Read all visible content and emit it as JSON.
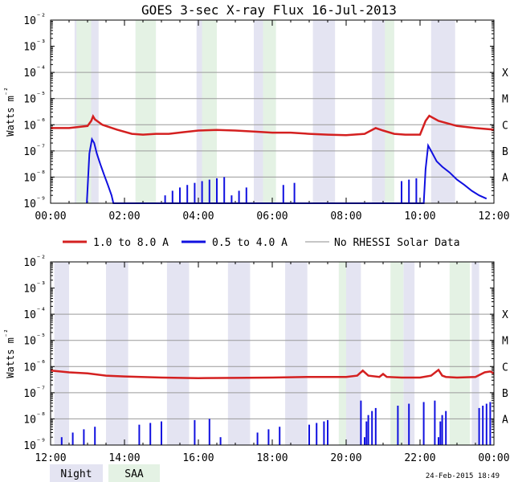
{
  "title": "GOES 3-sec X-ray Flux   16-Jul-2013",
  "footer_timestamp": "24-Feb-2015 18:49",
  "colors": {
    "long_channel": "#d42020",
    "short_channel": "#1010e0",
    "no_rhessi": "#8c8c8c",
    "night_band": "#e4e4f2",
    "saa_band": "#e4f2e4",
    "grid": "#9a9a9a"
  },
  "legend": {
    "long": "1.0 to 8.0 A",
    "short": "0.5 to 4.0 A",
    "no_data": "No RHESSI Solar Data",
    "night": "Night",
    "saa": "SAA"
  },
  "chart_data": [
    {
      "type": "line",
      "ylabel": "Watts m⁻²",
      "yscale": "log",
      "ylim": [
        1e-09,
        0.01
      ],
      "xlim_hours": [
        0,
        12
      ],
      "x_ticks": [
        "00:00",
        "02:00",
        "04:00",
        "06:00",
        "08:00",
        "10:00",
        "12:00"
      ],
      "y_ticks": [
        "10⁻⁹",
        "10⁻⁸",
        "10⁻⁷",
        "10⁻⁶",
        "10⁻⁵",
        "10⁻⁴",
        "10⁻³",
        "10⁻²"
      ],
      "flare_classes": [
        "A",
        "B",
        "C",
        "M",
        "X"
      ],
      "night_bands_hours": [
        [
          0.65,
          1.3
        ],
        [
          2.3,
          2.85
        ],
        [
          3.95,
          4.5
        ],
        [
          5.5,
          6.1
        ],
        [
          7.1,
          7.7
        ],
        [
          8.7,
          9.3
        ],
        [
          10.3,
          10.95
        ]
      ],
      "saa_bands_hours": [
        [
          0.7,
          1.1
        ],
        [
          2.3,
          2.85
        ],
        [
          4.1,
          4.5
        ],
        [
          5.75,
          6.1
        ],
        [
          9.05,
          9.3
        ]
      ],
      "series": [
        {
          "name": "1.0 to 8.0 A",
          "x_hours": [
            0,
            0.5,
            1.0,
            1.1,
            1.15,
            1.2,
            1.4,
            1.8,
            2.2,
            2.5,
            2.85,
            3.2,
            3.6,
            4.0,
            4.5,
            5.0,
            5.5,
            6.0,
            6.5,
            7.0,
            7.5,
            8.0,
            8.5,
            8.8,
            9.0,
            9.3,
            9.6,
            10.0,
            10.15,
            10.25,
            10.5,
            11.0,
            11.5,
            12.0
          ],
          "y": [
            7.5e-07,
            7.5e-07,
            9e-07,
            1.4e-06,
            2.1e-06,
            1.6e-06,
            1e-06,
            6.5e-07,
            4.5e-07,
            4.2e-07,
            4.5e-07,
            4.5e-07,
            5.2e-07,
            6e-07,
            6.3e-07,
            6e-07,
            5.5e-07,
            5e-07,
            5e-07,
            4.5e-07,
            4.2e-07,
            4e-07,
            4.5e-07,
            7.5e-07,
            6e-07,
            4.5e-07,
            4.2e-07,
            4.2e-07,
            1.4e-06,
            2.2e-06,
            1.4e-06,
            9e-07,
            7.5e-07,
            6.5e-07
          ]
        },
        {
          "name": "0.5 to 4.0 A",
          "x_hours": [
            0.98,
            1.05,
            1.12,
            1.18,
            1.25,
            1.35,
            1.45,
            1.55,
            1.65,
            1.7,
            10.1,
            10.15,
            10.22,
            10.3,
            10.45,
            10.6,
            10.8,
            11.0,
            11.2,
            11.4,
            11.6,
            11.8
          ],
          "y": [
            1e-09,
            8e-08,
            2.8e-07,
            2e-07,
            8e-08,
            3e-08,
            1.2e-08,
            5e-09,
            2e-09,
            1e-09,
            1e-09,
            2e-08,
            1.6e-07,
            1e-07,
            4e-08,
            2.5e-08,
            1.5e-08,
            8e-09,
            5e-09,
            3e-09,
            2e-09,
            1.5e-09
          ],
          "noise_hours": [
            3.1,
            3.3,
            3.5,
            3.7,
            3.9,
            4.1,
            4.3,
            4.5,
            4.7,
            4.9,
            5.1,
            5.3,
            6.3,
            6.6,
            9.5,
            9.7,
            9.9
          ]
        }
      ]
    },
    {
      "type": "line",
      "ylabel": "Watts m⁻²",
      "yscale": "log",
      "ylim": [
        1e-09,
        0.01
      ],
      "xlim_hours": [
        12,
        24
      ],
      "x_ticks": [
        "12:00",
        "14:00",
        "16:00",
        "18:00",
        "20:00",
        "22:00",
        "00:00"
      ],
      "y_ticks": [
        "10⁻⁹",
        "10⁻⁸",
        "10⁻⁷",
        "10⁻⁶",
        "10⁻⁵",
        "10⁻⁴",
        "10⁻³",
        "10⁻²"
      ],
      "flare_classes": [
        "A",
        "B",
        "C",
        "M",
        "X"
      ],
      "night_bands_hours": [
        [
          12.1,
          12.5
        ],
        [
          13.5,
          14.1
        ],
        [
          15.15,
          15.75
        ],
        [
          16.8,
          17.4
        ],
        [
          18.35,
          18.95
        ],
        [
          19.9,
          20.4
        ],
        [
          21.55,
          21.85
        ],
        [
          23.4,
          23.6
        ]
      ],
      "saa_bands_hours": [
        [
          19.8,
          20.0
        ],
        [
          21.2,
          21.55
        ],
        [
          22.8,
          23.35
        ]
      ],
      "series": [
        {
          "name": "1.0 to 8.0 A",
          "x_hours": [
            12,
            12.5,
            13,
            13.5,
            14,
            15,
            16,
            17,
            18,
            19,
            19.5,
            20,
            20.3,
            20.45,
            20.6,
            20.9,
            21.0,
            21.1,
            21.5,
            22,
            22.3,
            22.5,
            22.6,
            22.7,
            23,
            23.5,
            23.75,
            23.9,
            24
          ],
          "y": [
            7e-07,
            6e-07,
            5.5e-07,
            4.5e-07,
            4.2e-07,
            3.8e-07,
            3.6e-07,
            3.7e-07,
            3.8e-07,
            4e-07,
            4e-07,
            4e-07,
            4.5e-07,
            7e-07,
            4.5e-07,
            4e-07,
            5.2e-07,
            4e-07,
            3.8e-07,
            3.8e-07,
            4.5e-07,
            7.5e-07,
            4.5e-07,
            4e-07,
            3.8e-07,
            4e-07,
            6e-07,
            6.5e-07,
            5.5e-07
          ]
        },
        {
          "name": "0.5 to 4.0 A",
          "x_hours": [],
          "y": [],
          "noise_hours": [
            12.3,
            12.6,
            12.9,
            13.2,
            14.4,
            14.7,
            15.0,
            15.9,
            16.3,
            16.6,
            17.6,
            17.9,
            18.2,
            19.0,
            19.2,
            19.4,
            19.5,
            20.4,
            20.5,
            20.55,
            20.6,
            20.7,
            20.8,
            21.4,
            21.7,
            22.1,
            22.4,
            22.5,
            22.55,
            22.6,
            22.7,
            23.6,
            23.7,
            23.8,
            23.9
          ]
        }
      ]
    }
  ]
}
